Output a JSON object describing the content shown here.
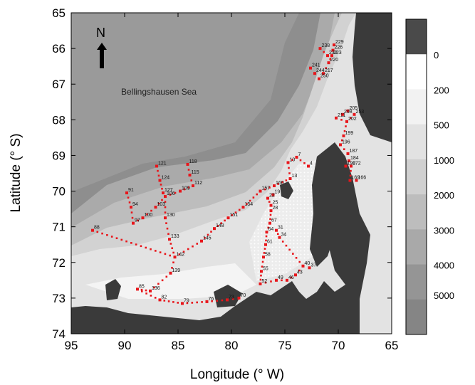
{
  "map": {
    "region_label": "Bellingshausen Sea",
    "north_label": "N",
    "x_title": "Longitude (° W)",
    "y_title": "Latitude (° S)",
    "x_ticks": [
      "95",
      "90",
      "85",
      "80",
      "75",
      "70",
      "65"
    ],
    "y_ticks": [
      "65",
      "66",
      "67",
      "68",
      "69",
      "70",
      "71",
      "72",
      "73",
      "74"
    ],
    "lon_range": [
      95,
      65
    ],
    "lat_range": [
      65,
      74
    ],
    "station_color": "#e8161b",
    "land_color": "#3a3a3a"
  },
  "colorbar": {
    "labels": [
      "0",
      "200",
      "500",
      "1000",
      "2000",
      "3000",
      "4000",
      "5000"
    ],
    "colors": [
      "#4a4a4a",
      "#ffffff",
      "#f2f2f2",
      "#e2e2e2",
      "#d0d0d0",
      "#bdbdbd",
      "#a9a9a9",
      "#959595",
      "#858585"
    ]
  },
  "stations": [
    {
      "id": "238",
      "lon": 71.7,
      "lat": 66.0
    },
    {
      "id": "229",
      "lon": 70.4,
      "lat": 65.9
    },
    {
      "id": "226",
      "lon": 70.5,
      "lat": 66.05
    },
    {
      "id": "232",
      "lon": 71.0,
      "lat": 66.2
    },
    {
      "id": "223",
      "lon": 70.6,
      "lat": 66.2
    },
    {
      "id": "220",
      "lon": 70.9,
      "lat": 66.4
    },
    {
      "id": "241",
      "lon": 72.6,
      "lat": 66.55
    },
    {
      "id": "244",
      "lon": 72.2,
      "lat": 66.7
    },
    {
      "id": "217",
      "lon": 71.4,
      "lat": 66.7
    },
    {
      "id": "250",
      "lon": 71.8,
      "lat": 66.85
    },
    {
      "id": "205",
      "lon": 69.1,
      "lat": 67.75
    },
    {
      "id": "208",
      "lon": 69.6,
      "lat": 67.85
    },
    {
      "id": "253",
      "lon": 68.5,
      "lat": 67.85
    },
    {
      "id": "211",
      "lon": 70.2,
      "lat": 67.95
    },
    {
      "id": "202",
      "lon": 69.2,
      "lat": 68.05
    },
    {
      "id": "199",
      "lon": 69.5,
      "lat": 68.45
    },
    {
      "id": "196",
      "lon": 69.8,
      "lat": 68.7
    },
    {
      "id": "187",
      "lon": 69.1,
      "lat": 68.95
    },
    {
      "id": "184",
      "lon": 69.0,
      "lat": 69.15
    },
    {
      "id": "190",
      "lon": 69.3,
      "lat": 69.3
    },
    {
      "id": "172",
      "lon": 68.8,
      "lat": 69.3
    },
    {
      "id": "169",
      "lon": 68.9,
      "lat": 69.7
    },
    {
      "id": "166",
      "lon": 68.3,
      "lat": 69.7
    },
    {
      "id": "10",
      "lon": 74.7,
      "lat": 69.2
    },
    {
      "id": "7",
      "lon": 73.9,
      "lat": 69.05
    },
    {
      "id": "4",
      "lon": 72.8,
      "lat": 69.3
    },
    {
      "id": "13",
      "lon": 74.5,
      "lat": 69.65
    },
    {
      "id": "160",
      "lon": 76.0,
      "lat": 69.85
    },
    {
      "id": "157",
      "lon": 77.3,
      "lat": 70.0
    },
    {
      "id": "19",
      "lon": 76.1,
      "lat": 70.1
    },
    {
      "id": "154",
      "lon": 78.9,
      "lat": 70.45
    },
    {
      "id": "22",
      "lon": 76.6,
      "lat": 70.2
    },
    {
      "id": "25",
      "lon": 76.3,
      "lat": 70.4
    },
    {
      "id": "28",
      "lon": 76.3,
      "lat": 70.55
    },
    {
      "id": "151",
      "lon": 80.3,
      "lat": 70.75
    },
    {
      "id": "67",
      "lon": 76.4,
      "lat": 70.9
    },
    {
      "id": "31",
      "lon": 75.8,
      "lat": 71.1
    },
    {
      "id": "64",
      "lon": 76.7,
      "lat": 71.15
    },
    {
      "id": "34",
      "lon": 75.5,
      "lat": 71.3
    },
    {
      "id": "148",
      "lon": 81.6,
      "lat": 71.05
    },
    {
      "id": "145",
      "lon": 82.8,
      "lat": 71.4
    },
    {
      "id": "61",
      "lon": 76.8,
      "lat": 71.5
    },
    {
      "id": "58",
      "lon": 77.0,
      "lat": 71.85
    },
    {
      "id": "55",
      "lon": 77.2,
      "lat": 72.25
    },
    {
      "id": "52",
      "lon": 77.3,
      "lat": 72.6
    },
    {
      "id": "49",
      "lon": 75.8,
      "lat": 72.5
    },
    {
      "id": "46",
      "lon": 74.8,
      "lat": 72.5
    },
    {
      "id": "43",
      "lon": 74.0,
      "lat": 72.35
    },
    {
      "id": "40",
      "lon": 73.3,
      "lat": 72.1
    },
    {
      "id": "37",
      "lon": 72.7,
      "lat": 72.15
    },
    {
      "id": "121",
      "lon": 87.0,
      "lat": 69.3
    },
    {
      "id": "118",
      "lon": 84.1,
      "lat": 69.25
    },
    {
      "id": "124",
      "lon": 86.7,
      "lat": 69.7
    },
    {
      "id": "115",
      "lon": 83.9,
      "lat": 69.55
    },
    {
      "id": "112",
      "lon": 83.6,
      "lat": 69.85
    },
    {
      "id": "127",
      "lon": 86.4,
      "lat": 70.05
    },
    {
      "id": "109",
      "lon": 84.8,
      "lat": 70.0
    },
    {
      "id": "106",
      "lon": 86.2,
      "lat": 70.15
    },
    {
      "id": "103",
      "lon": 87.1,
      "lat": 70.45
    },
    {
      "id": "130",
      "lon": 86.2,
      "lat": 70.75
    },
    {
      "id": "91",
      "lon": 89.8,
      "lat": 70.05
    },
    {
      "id": "94",
      "lon": 89.4,
      "lat": 70.45
    },
    {
      "id": "100",
      "lon": 88.3,
      "lat": 70.75
    },
    {
      "id": "97",
      "lon": 89.2,
      "lat": 70.9
    },
    {
      "id": "133",
      "lon": 85.8,
      "lat": 71.35
    },
    {
      "id": "88",
      "lon": 93.0,
      "lat": 71.1
    },
    {
      "id": "142",
      "lon": 85.3,
      "lat": 71.85
    },
    {
      "id": "139",
      "lon": 85.7,
      "lat": 72.3
    },
    {
      "id": "85",
      "lon": 88.8,
      "lat": 72.75
    },
    {
      "id": "136",
      "lon": 87.6,
      "lat": 72.8
    },
    {
      "id": "82",
      "lon": 86.7,
      "lat": 73.05
    },
    {
      "id": "79",
      "lon": 84.6,
      "lat": 73.15
    },
    {
      "id": "76",
      "lon": 82.3,
      "lat": 73.1
    },
    {
      "id": "73",
      "lon": 80.4,
      "lat": 73.05
    },
    {
      "id": "70",
      "lon": 79.3,
      "lat": 73.0
    }
  ]
}
